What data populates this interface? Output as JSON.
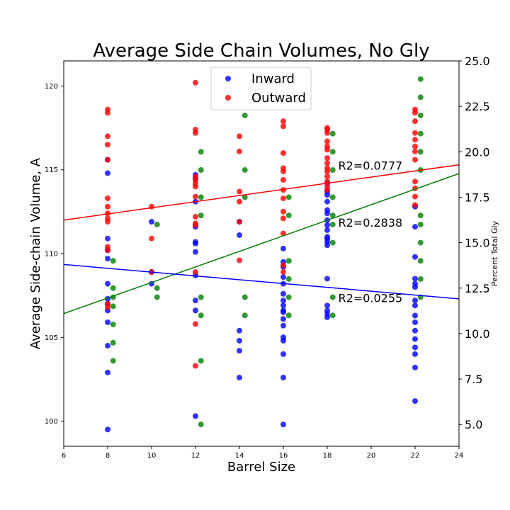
{
  "chart_data": {
    "type": "scatter",
    "title": "Average Side Chain Volumes, No Gly",
    "xlabel": "Barrel Size",
    "ylabel": "Average Side-chain Volume, A",
    "y2label": "Percent Total Gly",
    "xlim": [
      6,
      24
    ],
    "ylim": [
      98.5,
      121.5
    ],
    "y2lim": [
      3.8,
      25.0
    ],
    "xticks": [
      "6",
      "8",
      "10",
      "12",
      "14",
      "16",
      "18",
      "20",
      "22",
      "24"
    ],
    "yticks": [
      "100",
      "105",
      "110",
      "115",
      "120"
    ],
    "y2ticks": [
      "5.0",
      "7.5",
      "10.0",
      "12.5",
      "15.0",
      "17.5",
      "20.0",
      "22.5",
      "25.0"
    ],
    "legend_position": "top-center",
    "grid": false,
    "colors": {
      "inward": "#0000ff",
      "outward": "#ff0000",
      "gly": "#008000"
    },
    "series": [
      {
        "name": "Inward",
        "axis": "left",
        "points": [
          [
            8,
            99.5
          ],
          [
            8,
            102.9
          ],
          [
            8,
            104.5
          ],
          [
            8,
            105.9
          ],
          [
            8,
            106.6
          ],
          [
            8,
            107.0
          ],
          [
            8,
            107.3
          ],
          [
            8,
            108.2
          ],
          [
            8,
            109.7
          ],
          [
            8,
            110.2
          ],
          [
            8,
            110.9
          ],
          [
            8,
            114.8
          ],
          [
            8,
            115.6
          ],
          [
            10,
            108.2
          ],
          [
            10,
            108.9
          ],
          [
            10,
            111.9
          ],
          [
            12,
            100.3
          ],
          [
            12,
            106.6
          ],
          [
            12,
            107.2
          ],
          [
            12,
            108.7
          ],
          [
            12,
            110.1
          ],
          [
            12,
            110.6
          ],
          [
            12,
            110.7
          ],
          [
            12,
            111.6
          ],
          [
            12,
            113.1
          ],
          [
            12,
            114.5
          ],
          [
            12,
            114.7
          ],
          [
            14,
            102.6
          ],
          [
            14,
            104.2
          ],
          [
            14,
            104.8
          ],
          [
            14,
            105.4
          ],
          [
            14,
            111.1
          ],
          [
            14,
            111.9
          ],
          [
            16,
            99.8
          ],
          [
            16,
            102.6
          ],
          [
            16,
            104.0
          ],
          [
            16,
            104.8
          ],
          [
            16,
            105.0
          ],
          [
            16,
            105.7
          ],
          [
            16,
            106.1
          ],
          [
            16,
            106.5
          ],
          [
            16,
            106.6
          ],
          [
            16,
            106.9
          ],
          [
            16,
            107.2
          ],
          [
            16,
            107.6
          ],
          [
            16,
            108.2
          ],
          [
            16,
            108.6
          ],
          [
            16,
            109.2
          ],
          [
            16,
            109.5
          ],
          [
            16,
            110.3
          ],
          [
            18,
            106.2
          ],
          [
            18,
            106.4
          ],
          [
            18,
            106.6
          ],
          [
            18,
            106.9
          ],
          [
            18,
            108.5
          ],
          [
            18,
            110.5
          ],
          [
            18,
            110.7
          ],
          [
            18,
            110.9
          ],
          [
            18,
            111.0
          ],
          [
            18,
            111.4
          ],
          [
            18,
            111.7
          ],
          [
            18,
            112.0
          ],
          [
            18,
            112.4
          ],
          [
            18,
            112.6
          ],
          [
            18,
            113.1
          ],
          [
            18,
            113.5
          ],
          [
            18,
            113.7
          ],
          [
            18,
            114.2
          ],
          [
            22,
            101.2
          ],
          [
            22,
            103.2
          ],
          [
            22,
            104.0
          ],
          [
            22,
            104.4
          ],
          [
            22,
            104.9
          ],
          [
            22,
            105.4
          ],
          [
            22,
            105.9
          ],
          [
            22,
            106.3
          ],
          [
            22,
            106.9
          ],
          [
            22,
            107.2
          ],
          [
            22,
            108.0
          ],
          [
            22,
            108.2
          ],
          [
            22,
            108.5
          ],
          [
            22,
            109.8
          ],
          [
            22,
            111.6
          ],
          [
            22,
            112.8
          ]
        ]
      },
      {
        "name": "Outward",
        "axis": "left",
        "points": [
          [
            8,
            106.8
          ],
          [
            8,
            107.0
          ],
          [
            8,
            110.2
          ],
          [
            8,
            110.4
          ],
          [
            8,
            111.9
          ],
          [
            8,
            112.1
          ],
          [
            8,
            112.4
          ],
          [
            8,
            112.8
          ],
          [
            8,
            113.3
          ],
          [
            8,
            115.6
          ],
          [
            8,
            116.5
          ],
          [
            8,
            117.0
          ],
          [
            8,
            118.4
          ],
          [
            8,
            118.6
          ],
          [
            10,
            108.9
          ],
          [
            10,
            110.9
          ],
          [
            10,
            112.8
          ],
          [
            12,
            103.3
          ],
          [
            12,
            105.8
          ],
          [
            12,
            108.9
          ],
          [
            12,
            111.7
          ],
          [
            12,
            111.8
          ],
          [
            12,
            112.2
          ],
          [
            12,
            113.4
          ],
          [
            12,
            114.0
          ],
          [
            12,
            114.2
          ],
          [
            12,
            114.4
          ],
          [
            12,
            114.6
          ],
          [
            12,
            117.2
          ],
          [
            12,
            117.4
          ],
          [
            12,
            120.2
          ],
          [
            14,
            109.6
          ],
          [
            14,
            111.9
          ],
          [
            14,
            113.1
          ],
          [
            14,
            113.7
          ],
          [
            14,
            116.1
          ],
          [
            14,
            117.0
          ],
          [
            16,
            108.9
          ],
          [
            16,
            109.3
          ],
          [
            16,
            111.2
          ],
          [
            16,
            112.1
          ],
          [
            16,
            112.5
          ],
          [
            16,
            113.3
          ],
          [
            16,
            113.8
          ],
          [
            16,
            114.4
          ],
          [
            16,
            114.9
          ],
          [
            16,
            115.1
          ],
          [
            16,
            116.0
          ],
          [
            16,
            117.6
          ],
          [
            16,
            117.9
          ],
          [
            18,
            113.8
          ],
          [
            18,
            114.0
          ],
          [
            18,
            114.3
          ],
          [
            18,
            114.6
          ],
          [
            18,
            114.9
          ],
          [
            18,
            115.1
          ],
          [
            18,
            115.4
          ],
          [
            18,
            115.7
          ],
          [
            18,
            116.2
          ],
          [
            18,
            116.4
          ],
          [
            18,
            116.7
          ],
          [
            18,
            117.2
          ],
          [
            18,
            117.4
          ],
          [
            18,
            117.5
          ],
          [
            22,
            112.9
          ],
          [
            22,
            113.4
          ],
          [
            22,
            113.9
          ],
          [
            22,
            114.3
          ],
          [
            22,
            115.6
          ],
          [
            22,
            116.1
          ],
          [
            22,
            116.4
          ],
          [
            22,
            116.8
          ],
          [
            22,
            117.2
          ],
          [
            22,
            117.9
          ],
          [
            22,
            118.4
          ],
          [
            22,
            118.6
          ]
        ]
      },
      {
        "name": "",
        "axis": "right",
        "points": [
          [
            8.25,
            8.5
          ],
          [
            8.25,
            9.5
          ],
          [
            8.25,
            10.5
          ],
          [
            8.25,
            11.5
          ],
          [
            8.25,
            12.0
          ],
          [
            8.25,
            12.5
          ],
          [
            8.25,
            14.0
          ],
          [
            10.25,
            12.0
          ],
          [
            10.25,
            12.5
          ],
          [
            10.25,
            16.0
          ],
          [
            12.25,
            5.0
          ],
          [
            12.25,
            8.5
          ],
          [
            12.25,
            11.0
          ],
          [
            12.25,
            12.0
          ],
          [
            12.25,
            16.5
          ],
          [
            12.25,
            17.5
          ],
          [
            12.25,
            19.0
          ],
          [
            12.25,
            20.0
          ],
          [
            14.25,
            11.0
          ],
          [
            14.25,
            12.0
          ],
          [
            14.25,
            17.5
          ],
          [
            14.25,
            19.0
          ],
          [
            14.25,
            22.0
          ],
          [
            16.25,
            11.0
          ],
          [
            16.25,
            12.0
          ],
          [
            16.25,
            13.0
          ],
          [
            16.25,
            14.0
          ],
          [
            16.25,
            16.5
          ],
          [
            16.25,
            17.5
          ],
          [
            18.25,
            11.0
          ],
          [
            18.25,
            12.0
          ],
          [
            18.25,
            15.0
          ],
          [
            18.25,
            16.0
          ],
          [
            18.25,
            16.5
          ],
          [
            18.25,
            17.5
          ],
          [
            18.25,
            19.0
          ],
          [
            18.25,
            20.0
          ],
          [
            18.25,
            21.0
          ],
          [
            22.25,
            12.0
          ],
          [
            22.25,
            13.0
          ],
          [
            22.25,
            14.0
          ],
          [
            22.25,
            15.0
          ],
          [
            22.25,
            16.0
          ],
          [
            22.25,
            16.5
          ],
          [
            22.25,
            19.0
          ],
          [
            22.25,
            20.0
          ],
          [
            22.25,
            21.0
          ],
          [
            22.25,
            22.0
          ],
          [
            22.25,
            23.0
          ],
          [
            22.25,
            24.0
          ]
        ]
      }
    ],
    "fit_lines": [
      {
        "series": "Outward",
        "axis": "left",
        "color": "#ff0000",
        "from": [
          6,
          112.0
        ],
        "to": [
          24,
          115.3
        ]
      },
      {
        "series": "gly",
        "axis": "right",
        "color": "#008000",
        "from": [
          6,
          11.1
        ],
        "to": [
          24,
          18.8
        ]
      },
      {
        "series": "Inward",
        "axis": "left",
        "color": "#0000ff",
        "from": [
          6,
          109.35
        ],
        "to": [
          24,
          107.3
        ]
      }
    ],
    "annotations": [
      {
        "text": "R2=0.0777",
        "x": 18.5,
        "y": 115.0
      },
      {
        "text": "R2=0.2838",
        "x": 18.5,
        "y": 111.6
      },
      {
        "text": "R2=0.0255",
        "x": 18.5,
        "y": 107.1
      }
    ]
  }
}
